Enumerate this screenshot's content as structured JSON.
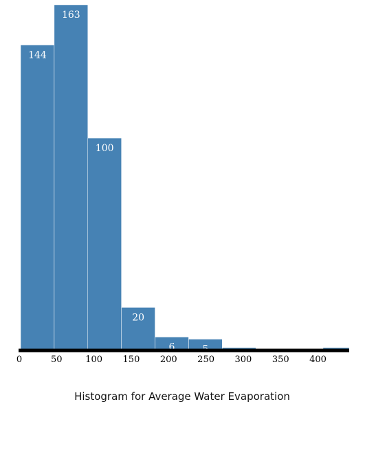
{
  "chart_data": {
    "type": "bar",
    "title": "Histogram for Average Water Evaporation",
    "xlabel": "",
    "ylabel": "",
    "bins": [
      {
        "x0": 0,
        "x1": 45,
        "count": 144,
        "label": "144"
      },
      {
        "x0": 45,
        "x1": 90,
        "count": 163,
        "label": "163"
      },
      {
        "x0": 90,
        "x1": 135,
        "count": 100,
        "label": "100"
      },
      {
        "x0": 135,
        "x1": 180,
        "count": 20,
        "label": "20"
      },
      {
        "x0": 180,
        "x1": 225,
        "count": 6,
        "label": "6"
      },
      {
        "x0": 225,
        "x1": 270,
        "count": 5,
        "label": "5"
      },
      {
        "x0": 270,
        "x1": 315,
        "count": 1,
        "label": ""
      },
      {
        "x0": 315,
        "x1": 360,
        "count": 0,
        "label": ""
      },
      {
        "x0": 360,
        "x1": 405,
        "count": 0,
        "label": ""
      },
      {
        "x0": 405,
        "x1": 440,
        "count": 1,
        "label": ""
      }
    ],
    "xticks": [
      "0",
      "50",
      "100",
      "150",
      "200",
      "250",
      "300",
      "350",
      "400"
    ],
    "xlim": [
      0,
      440
    ],
    "ylim": [
      0,
      163
    ],
    "bar_color": "#4682b4",
    "grid": false,
    "legend": "none"
  }
}
